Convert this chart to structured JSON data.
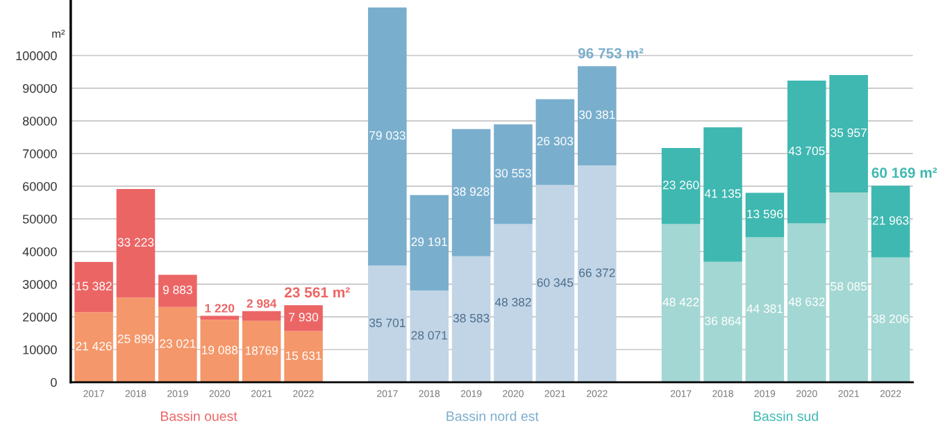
{
  "chart_data": {
    "type": "bar",
    "stacked": true,
    "ylabel": "m²",
    "categories": [
      "2017",
      "2018",
      "2019",
      "2020",
      "2021",
      "2022",
      null,
      "2017",
      "2018",
      "2019",
      "2020",
      "2021",
      "2022",
      null,
      "2017",
      "2018",
      "2019",
      "2020",
      "2021",
      "2022"
    ],
    "series": [
      {
        "colors": [
          "#f4976a",
          "#f4976a",
          "#f4976a",
          "#f4976a",
          "#f4976a",
          "#f4976a",
          null,
          "#c1d5e6",
          "#c1d5e6",
          "#c1d5e6",
          "#c1d5e6",
          "#c1d5e6",
          "#c1d5e6",
          null,
          "#a3d7d3",
          "#a3d7d3",
          "#a3d7d3",
          "#a3d7d3",
          "#a3d7d3",
          "#a3d7d3"
        ],
        "values": [
          21426,
          25899,
          23021,
          19088,
          18769,
          15631,
          null,
          35701,
          28071,
          38583,
          48382,
          60345,
          66372,
          null,
          48422,
          36864,
          44381,
          48632,
          58085,
          38206
        ],
        "value_labels": [
          "21 426",
          "25 899",
          "23 021",
          "19 088",
          "18769",
          "15 631",
          null,
          "35 701",
          "28 071",
          "38 583",
          "48 382",
          "60 345",
          "66 372",
          null,
          "48 422",
          "36 864",
          "44 381",
          "48 632",
          "58 085",
          "38 206"
        ]
      },
      {
        "colors": [
          "#ec6565",
          "#ec6565",
          "#ec6565",
          "#ec6565",
          "#ec6565",
          "#ec6565",
          null,
          "#7aaecd",
          "#7aaecd",
          "#7aaecd",
          "#7aaecd",
          "#7aaecd",
          "#7aaecd",
          null,
          "#3fb8b1",
          "#3fb8b1",
          "#3fb8b1",
          "#3fb8b1",
          "#3fb8b1",
          "#3fb8b1"
        ],
        "values": [
          15382,
          33223,
          9883,
          1220,
          2984,
          7930,
          null,
          79033,
          29191,
          38928,
          30553,
          26303,
          30381,
          null,
          23260,
          41135,
          13596,
          43705,
          35957,
          21963
        ],
        "value_labels": [
          "15 382",
          "33 223",
          "9 883",
          "1 220",
          "2 984",
          "7 930",
          null,
          "79 033",
          "29 191",
          "38 928",
          "30 553",
          "26 303",
          "30 381",
          null,
          "23 260",
          "41 135",
          "13 596",
          "43 705",
          "35 957",
          "21 963"
        ]
      }
    ],
    "totals": [
      null,
      null,
      null,
      null,
      null,
      "23 561 m²",
      null,
      null,
      null,
      null,
      null,
      null,
      "96 753 m²",
      null,
      null,
      null,
      null,
      null,
      null,
      "60 169 m²"
    ],
    "annotations": [
      "Bassin ouest",
      "Bassin nord est",
      "Bassin sud"
    ],
    "ylim": [
      0,
      117000
    ],
    "yticks": [
      0,
      10000,
      20000,
      30000,
      40000,
      50000,
      60000,
      70000,
      80000,
      90000,
      100000
    ],
    "grid": "y",
    "legend": false
  }
}
